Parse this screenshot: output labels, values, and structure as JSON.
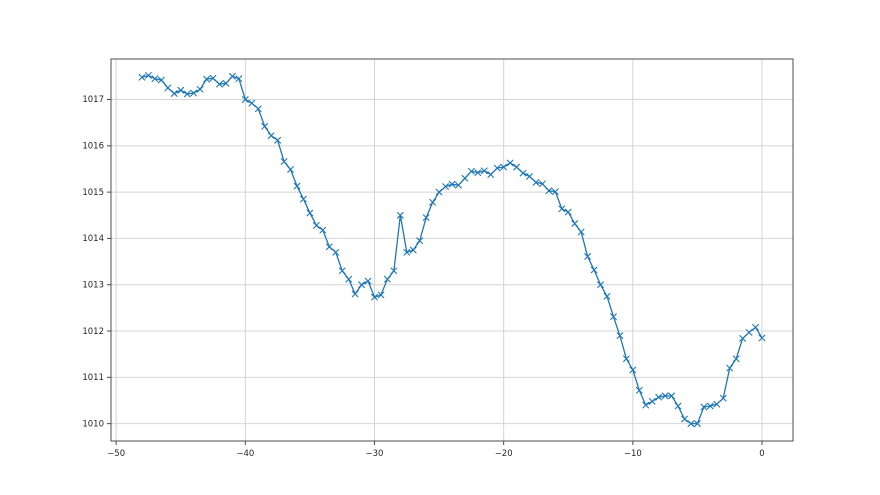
{
  "figure": {
    "background_color": "#ffffff",
    "title": "",
    "legend": null
  },
  "chart_data": {
    "type": "line",
    "title": "",
    "xlabel": "",
    "ylabel": "",
    "line_color": "#1f77b4",
    "marker": "x",
    "grid": true,
    "grid_color": "#d4d4d4",
    "spine_color": "#4c4c4c",
    "tick_label_color": "#262626",
    "xlim": [
      -50.4,
      2.4
    ],
    "ylim": [
      1009.625,
      1017.875
    ],
    "xticks": [
      -50,
      -40,
      -30,
      -20,
      -10,
      0
    ],
    "xtick_labels": [
      "−50",
      "−40",
      "−30",
      "−20",
      "−10",
      "0"
    ],
    "yticks": [
      1010,
      1011,
      1012,
      1013,
      1014,
      1015,
      1016,
      1017
    ],
    "ytick_labels": [
      "1010",
      "1011",
      "1012",
      "1013",
      "1014",
      "1015",
      "1016",
      "1017"
    ],
    "x_start": -48,
    "x_step": 0.5,
    "values": [
      1017.48,
      1017.52,
      1017.45,
      1017.42,
      1017.25,
      1017.13,
      1017.2,
      1017.12,
      1017.14,
      1017.22,
      1017.44,
      1017.46,
      1017.33,
      1017.35,
      1017.5,
      1017.45,
      1017.0,
      1016.92,
      1016.8,
      1016.42,
      1016.22,
      1016.12,
      1015.66,
      1015.49,
      1015.13,
      1014.85,
      1014.55,
      1014.28,
      1014.18,
      1013.82,
      1013.7,
      1013.3,
      1013.12,
      1012.8,
      1013.0,
      1013.08,
      1012.73,
      1012.78,
      1013.12,
      1013.3,
      1014.5,
      1013.7,
      1013.75,
      1013.95,
      1014.45,
      1014.78,
      1015.0,
      1015.12,
      1015.17,
      1015.15,
      1015.3,
      1015.45,
      1015.42,
      1015.46,
      1015.38,
      1015.52,
      1015.54,
      1015.63,
      1015.54,
      1015.41,
      1015.34,
      1015.21,
      1015.18,
      1015.03,
      1015.01,
      1014.64,
      1014.57,
      1014.32,
      1014.14,
      1013.61,
      1013.32,
      1013.0,
      1012.75,
      1012.31,
      1011.9,
      1011.4,
      1011.16,
      1010.72,
      1010.4,
      1010.48,
      1010.57,
      1010.6,
      1010.6,
      1010.38,
      1010.1,
      1010.0,
      1010.0,
      1010.36,
      1010.38,
      1010.42,
      1010.55,
      1011.2,
      1011.4,
      1011.84,
      1011.97,
      1012.08,
      1011.85
    ]
  }
}
